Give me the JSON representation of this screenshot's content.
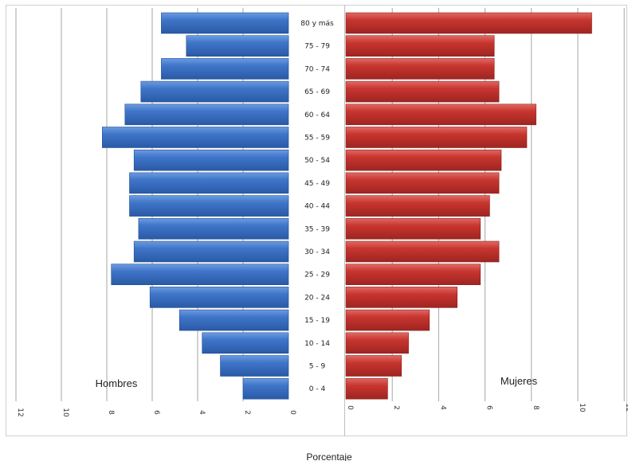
{
  "chart_data": {
    "type": "bar",
    "orientation": "horizontal",
    "categories": [
      "0 - 4",
      "5 - 9",
      "10 - 14",
      "15 - 19",
      "20 - 24",
      "25 - 29",
      "30 - 34",
      "35 - 39",
      "40 - 44",
      "45 - 49",
      "50 - 54",
      "55 - 59",
      "60 - 64",
      "65 - 69",
      "70 - 74",
      "75 - 79",
      "80 y más"
    ],
    "series": [
      {
        "name": "Hombres",
        "color": "#3a6fbf",
        "values": [
          2.0,
          3.0,
          3.8,
          4.8,
          6.1,
          7.8,
          6.8,
          6.6,
          7.0,
          7.0,
          6.8,
          8.2,
          7.2,
          6.5,
          5.6,
          4.5,
          5.6
        ]
      },
      {
        "name": "Mujeres",
        "color": "#c0332f",
        "values": [
          1.8,
          2.4,
          2.7,
          3.6,
          4.8,
          5.8,
          6.6,
          5.8,
          6.2,
          6.6,
          6.7,
          7.8,
          8.2,
          6.6,
          6.4,
          6.4,
          10.6
        ]
      }
    ],
    "xlim": [
      0,
      12
    ],
    "xticks": [
      "0",
      "2",
      "4",
      "6",
      "8",
      "10",
      "12"
    ],
    "xlabel": "Porcentaje",
    "grid": true
  }
}
